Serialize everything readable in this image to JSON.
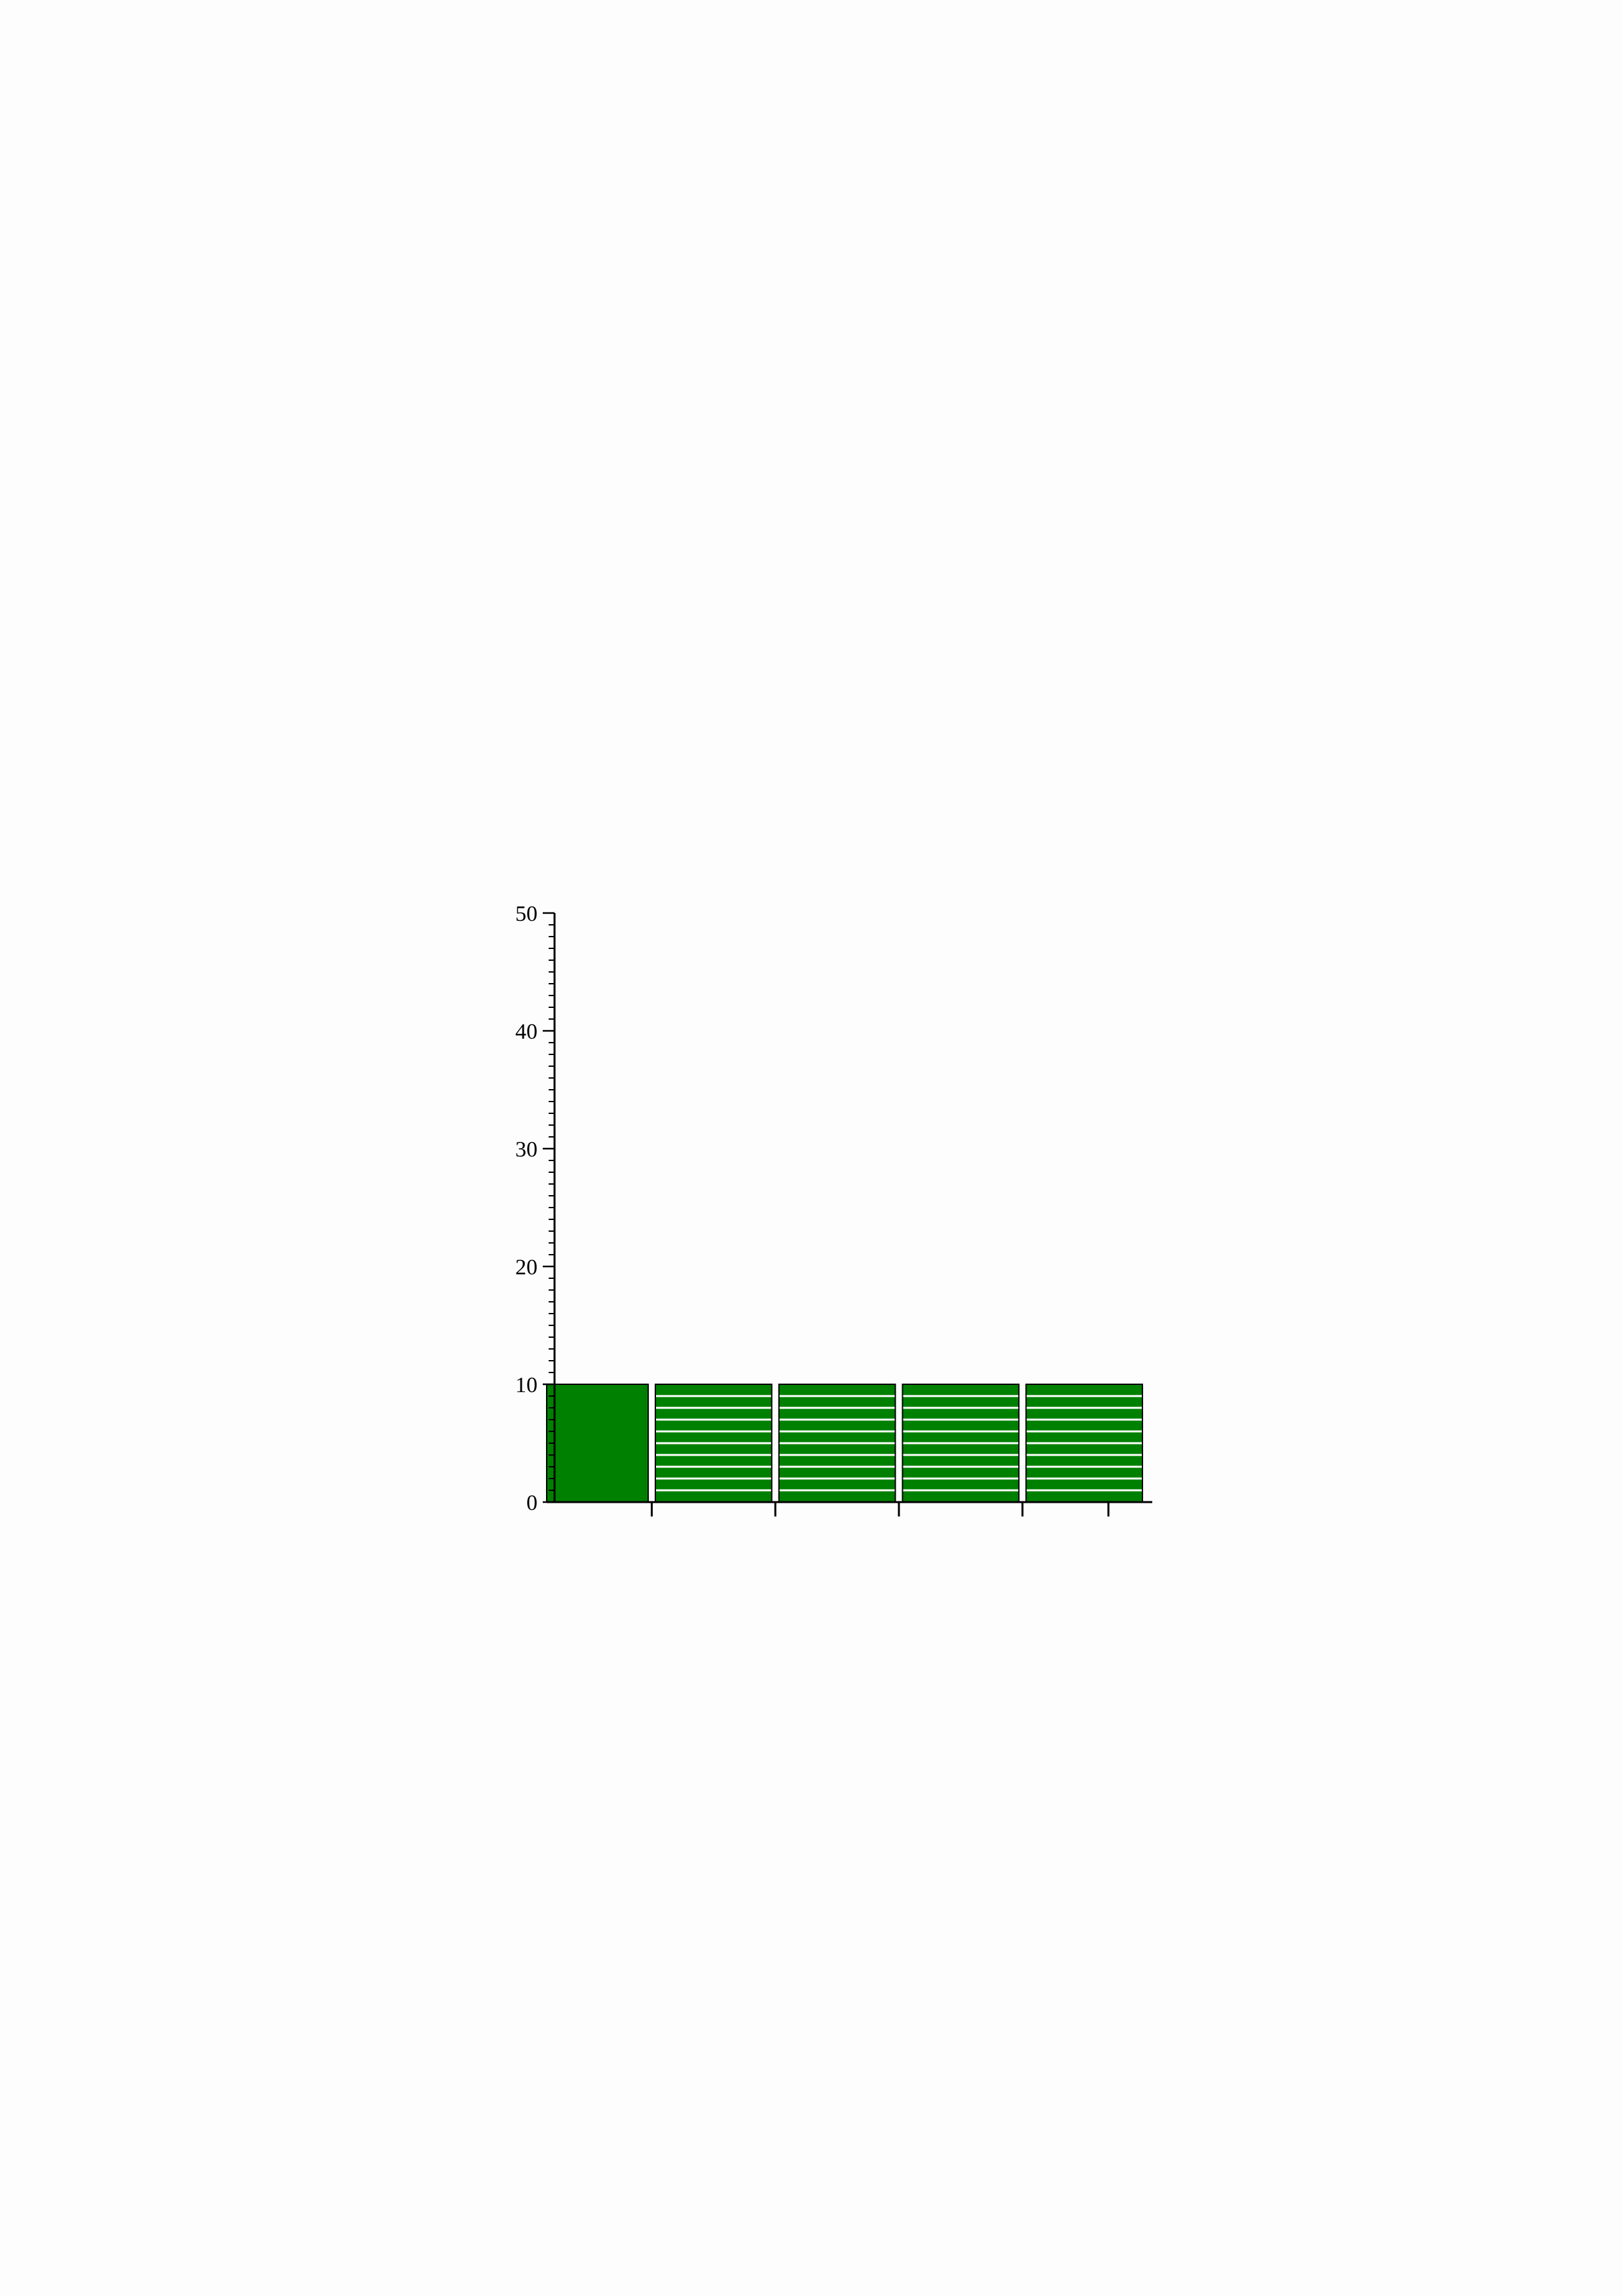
{
  "chart_data": {
    "type": "bar",
    "categories": [
      "",
      "",
      "",
      "",
      ""
    ],
    "values": [
      10,
      10,
      10,
      10,
      10
    ],
    "ylim": [
      0,
      50
    ],
    "y_ticks": [
      "0",
      "10",
      "20",
      "30",
      "40",
      "50"
    ],
    "y_minor_ticks_per_major": 10,
    "bar_fills": [
      "solid",
      "striped",
      "striped",
      "striped",
      "striped"
    ],
    "title": "",
    "xlabel": "",
    "ylabel": "",
    "grid": false,
    "legend": "none"
  },
  "colors": {
    "bar": "#008000",
    "stripe": "#ffffff",
    "axis": "#000000",
    "background": "#fdfdfd"
  }
}
